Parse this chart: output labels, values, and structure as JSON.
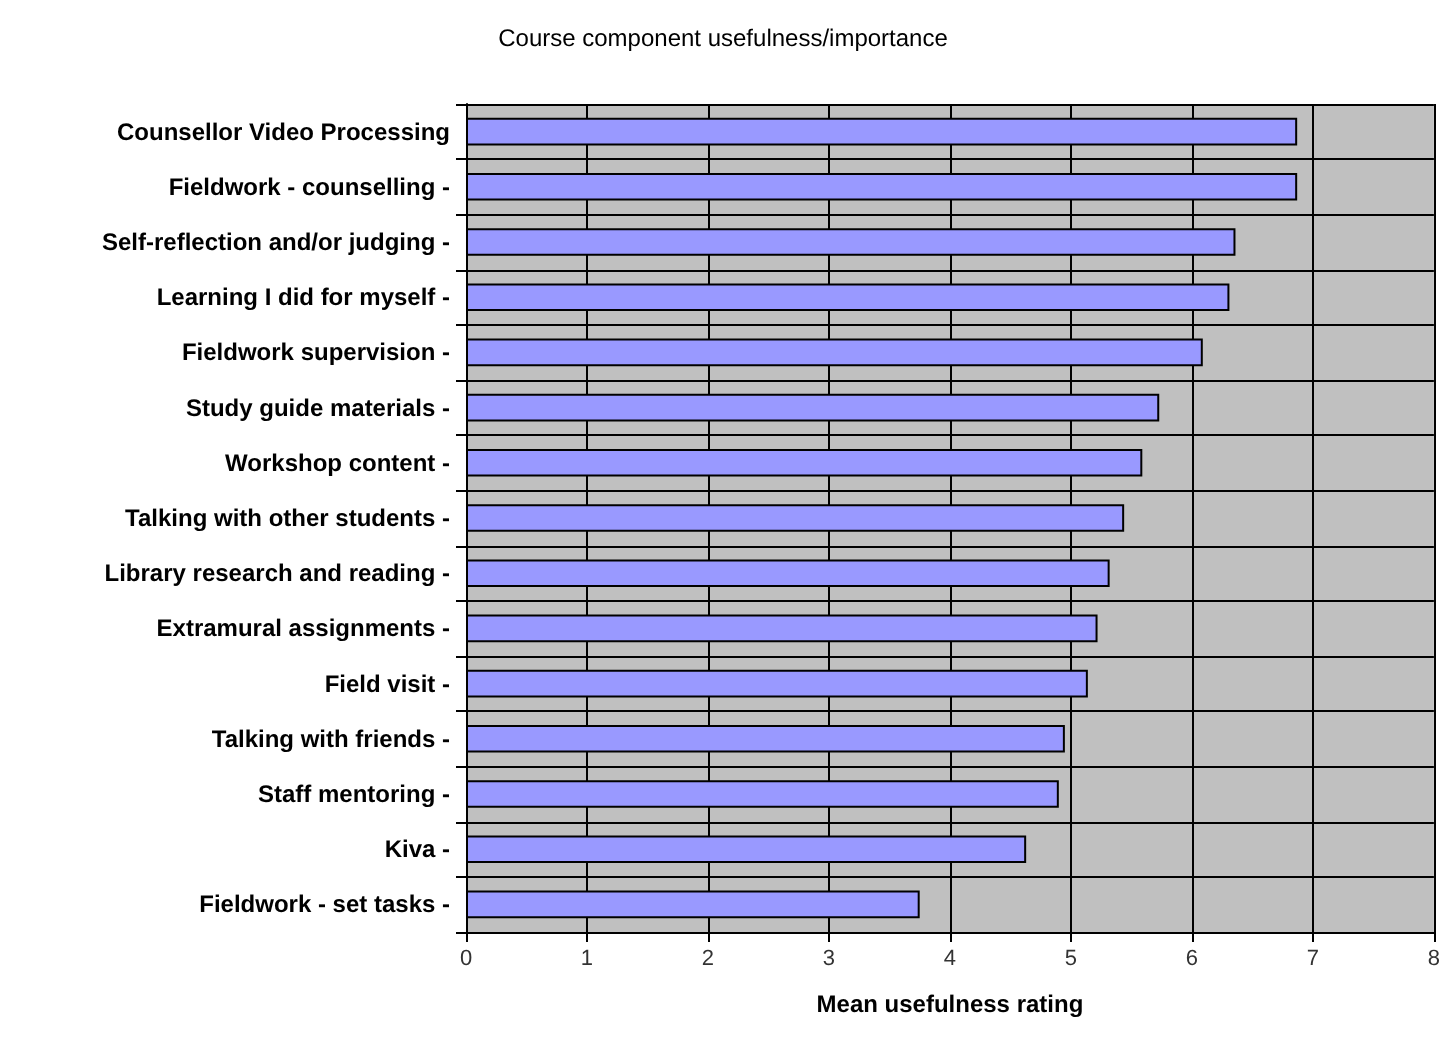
{
  "chart_data": {
    "type": "bar",
    "orientation": "horizontal",
    "title": "Course component usefulness/importance",
    "xlabel": "Mean usefulness rating",
    "categories": [
      "Counsellor Video Processing",
      "Fieldwork - counselling -",
      "Self-reflection and/or judging -",
      "Learning I did for myself -",
      "Fieldwork supervision -",
      "Study guide materials -",
      "Workshop content -",
      "Talking with other students -",
      "Library research and reading -",
      "Extramural assignments -",
      "Field visit -",
      "Talking with friends -",
      "Staff mentoring -",
      "Kiva -",
      "Fieldwork - set tasks -"
    ],
    "values": [
      6.87,
      6.87,
      6.36,
      6.31,
      6.09,
      5.73,
      5.59,
      5.44,
      5.32,
      5.22,
      5.14,
      4.95,
      4.9,
      4.63,
      3.75
    ],
    "color": "#9999ff",
    "xlim": [
      0,
      8
    ],
    "xticks": [
      0,
      1,
      2,
      3,
      4,
      5,
      6,
      7,
      8
    ],
    "grid": true
  }
}
